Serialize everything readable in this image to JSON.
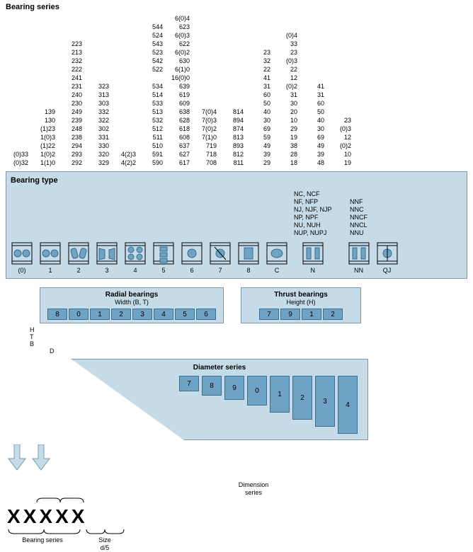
{
  "header": "Bearing series",
  "columns": [
    [
      "",
      "",
      "",
      "",
      "",
      "",
      "",
      "",
      "",
      "",
      "",
      "",
      "",
      "(0)33",
      "(0)32"
    ],
    [
      "",
      "",
      "",
      "",
      "",
      "",
      "",
      "",
      "139",
      "130",
      "(1)23",
      "1(0)3",
      "(1)22",
      "1(0)2",
      "1(1)0"
    ],
    [
      "",
      "223",
      "213",
      "232",
      "222",
      "241",
      "231",
      "240",
      "230",
      "249",
      "239",
      "248",
      "238",
      "294",
      "293",
      "292"
    ],
    [
      "",
      "",
      "",
      "",
      "",
      "",
      "",
      "323",
      "313",
      "303",
      "332",
      "322",
      "302",
      "331",
      "330",
      "320",
      "329"
    ],
    [
      "",
      "",
      "",
      "",
      "",
      "",
      "",
      "",
      "",
      "",
      "",
      "",
      "",
      "4(2)3",
      "4(2)2"
    ],
    [
      "544",
      "524",
      "543",
      "523",
      "542",
      "522",
      "",
      "534",
      "514",
      "533",
      "513",
      "532",
      "512",
      "511",
      "510",
      "591",
      "590"
    ],
    [
      "6(0)4",
      "623",
      "6(0)3",
      "622",
      "6(0)2",
      "630",
      "6(1)0",
      "16(0)0",
      "639",
      "619",
      "609",
      "638",
      "628",
      "618",
      "608",
      "637",
      "627",
      "617"
    ],
    [
      "",
      "",
      "",
      "",
      "",
      "",
      "",
      "",
      "",
      "",
      "7(0)4",
      "7(0)3",
      "7(0)2",
      "7(1)0",
      "719",
      "718",
      "708"
    ],
    [
      "",
      "",
      "",
      "",
      "",
      "",
      "",
      "",
      "",
      "",
      "814",
      "894",
      "874",
      "813",
      "893",
      "812",
      "811"
    ],
    [
      "",
      "",
      "",
      "",
      "23",
      "32",
      "22",
      "41",
      "31",
      "60",
      "50",
      "40",
      "30",
      "69",
      "59",
      "49",
      "39",
      "29"
    ],
    [
      "(0)4",
      "33",
      "23",
      "(0)3",
      "22",
      "12",
      "(0)2",
      "31",
      "30",
      "20",
      "10",
      "29",
      "19",
      "38",
      "28",
      "18"
    ],
    [
      "",
      "",
      "",
      "",
      "",
      "",
      "",
      "41",
      "31",
      "60",
      "50",
      "40",
      "30",
      "69",
      "49",
      "39",
      "48"
    ],
    [
      "",
      "",
      "",
      "",
      "",
      "",
      "",
      "",
      "",
      "",
      "",
      "23",
      "(0)3",
      "12",
      "(0)2",
      "10",
      "19"
    ]
  ],
  "panel_title": "Bearing type",
  "type_labels": [
    "(0)",
    "1",
    "2",
    "3",
    "4",
    "5",
    "6",
    "7",
    "8",
    "C",
    "N",
    "NN",
    "QJ"
  ],
  "n_text1": [
    "NC, NCF",
    "NF, NFP",
    "NJ, NJF, NJP",
    "NP, NPF",
    "NU, NUH",
    "NUP, NUPJ"
  ],
  "n_text2": [
    "NNF",
    "NNC",
    "NNCF",
    "NNCL",
    "NNU"
  ],
  "radial": {
    "title": "Radial bearings",
    "sub": "Width (B, T)",
    "boxes": [
      "8",
      "0",
      "1",
      "2",
      "3",
      "4",
      "5",
      "6"
    ]
  },
  "thrust": {
    "title": "Thrust bearings",
    "sub": "Height (H)",
    "boxes": [
      "7",
      "9",
      "1",
      "2"
    ]
  },
  "htb": [
    "H",
    "T",
    "B"
  ],
  "d_label": "D",
  "diameter": {
    "title": "Diameter series",
    "boxes": [
      "7",
      "8",
      "9",
      "0",
      "1",
      "2",
      "3",
      "4"
    ],
    "heights": [
      22,
      28,
      34,
      42,
      52,
      62,
      72,
      82
    ]
  },
  "dim_series": "Dimension\nseries",
  "bearing_series": "Bearing series",
  "size": "Size\nd/5",
  "colors": {
    "panel": "#c5dbe8",
    "panel_border": "#7a9ab0",
    "box": "#6fa3c4",
    "box_border": "#3a6d8f"
  }
}
